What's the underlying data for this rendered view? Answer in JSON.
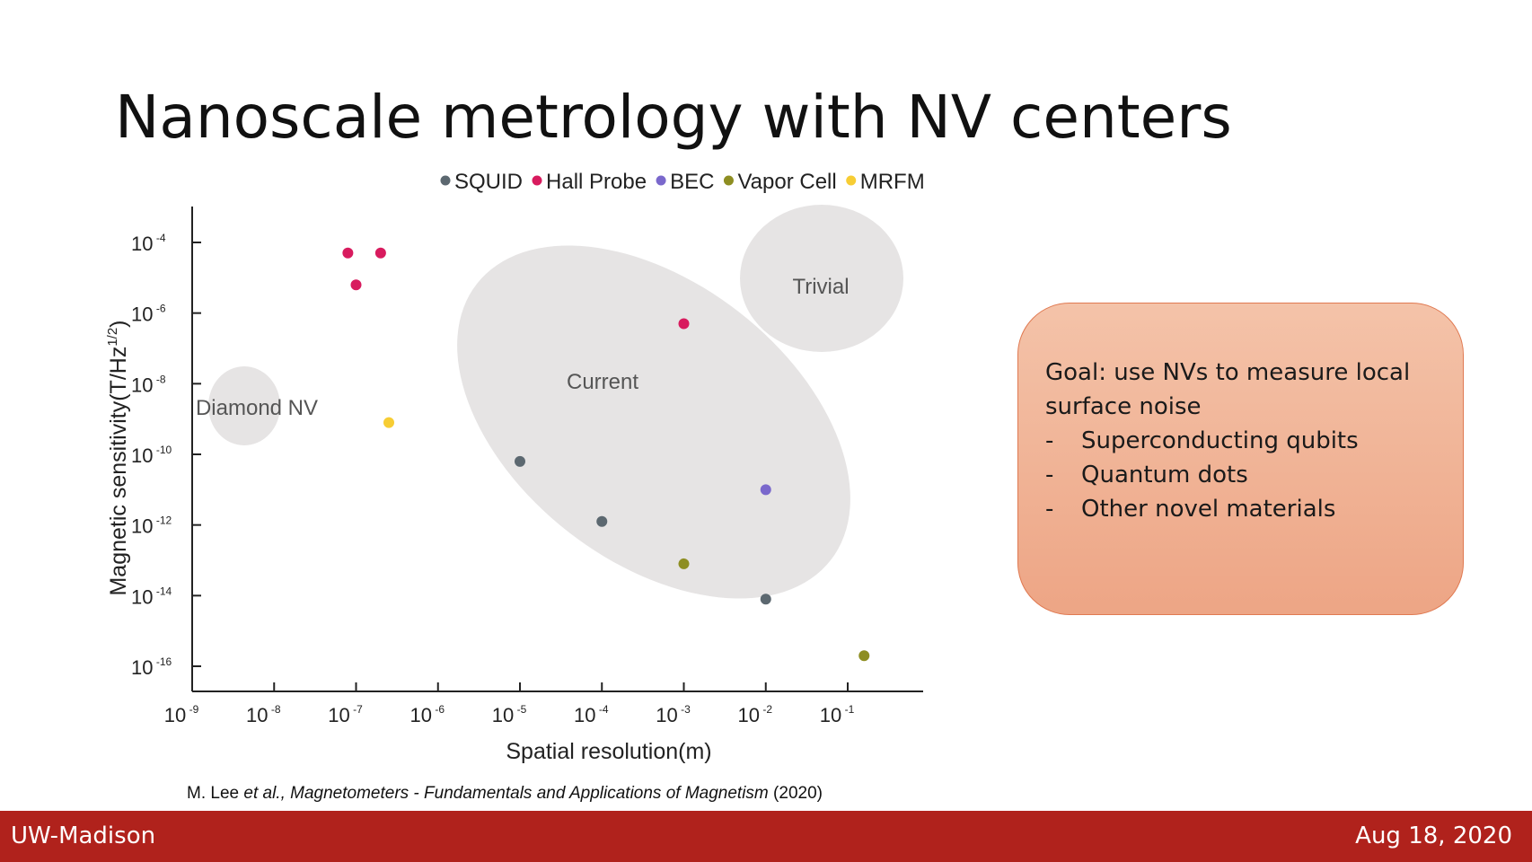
{
  "slide": {
    "title": "Nanoscale metrology with NV centers",
    "citation": {
      "authors": "M. Lee ",
      "etal": "et al.,",
      "work": " Magnetometers - Fundamentals and Applications of Magnetism",
      "year": " (2020)"
    }
  },
  "goal_box": {
    "heading": "Goal: use NVs to measure local surface noise",
    "items": [
      "Superconducting qubits",
      "Quantum dots",
      "Other novel materials"
    ]
  },
  "footer": {
    "left": "UW-Madison",
    "right": "Aug 18, 2020"
  },
  "chart_data": {
    "type": "scatter",
    "xlabel": "Spatial resolution(m)",
    "ylabel": "Magnetic sensitivity(T/Hz",
    "ylabel_sup": "1/2",
    "ylabel_end": ")",
    "x_scale": "log",
    "y_scale": "log",
    "xlim_exp": [
      -9,
      -1
    ],
    "ylim_exp": [
      -16,
      -4
    ],
    "x_ticks": [
      {
        "base": "10",
        "exp": "-9",
        "value": -9
      },
      {
        "base": "10",
        "exp": "-8",
        "value": -8
      },
      {
        "base": "10",
        "exp": "-7",
        "value": -7
      },
      {
        "base": "10",
        "exp": "-6",
        "value": -6
      },
      {
        "base": "10",
        "exp": "-5",
        "value": -5
      },
      {
        "base": "10",
        "exp": "-4",
        "value": -4
      },
      {
        "base": "10",
        "exp": "-3",
        "value": -3
      },
      {
        "base": "10",
        "exp": "-2",
        "value": -2
      },
      {
        "base": "10",
        "exp": "-1",
        "value": -1
      }
    ],
    "y_ticks": [
      {
        "base": "10",
        "exp": "-4",
        "value": -4
      },
      {
        "base": "10",
        "exp": "-6",
        "value": -6
      },
      {
        "base": "10",
        "exp": "-8",
        "value": -8
      },
      {
        "base": "10",
        "exp": "-10",
        "value": -10
      },
      {
        "base": "10",
        "exp": "-12",
        "value": -12
      },
      {
        "base": "10",
        "exp": "-14",
        "value": -14
      },
      {
        "base": "10",
        "exp": "-16",
        "value": -16
      }
    ],
    "legend_position": "top",
    "series": [
      {
        "name": "SQUID",
        "color": "#5c6870",
        "points": [
          {
            "x": -5,
            "y": -10.2
          },
          {
            "x": -4,
            "y": -11.9
          },
          {
            "x": -2,
            "y": -14.1
          }
        ]
      },
      {
        "name": "Hall Probe",
        "color": "#d81b5e",
        "points": [
          {
            "x": -7.1,
            "y": -4.3
          },
          {
            "x": -6.7,
            "y": -4.3
          },
          {
            "x": -7,
            "y": -5.2
          },
          {
            "x": -3,
            "y": -6.3
          }
        ]
      },
      {
        "name": "BEC",
        "color": "#7a68cc",
        "points": [
          {
            "x": -2,
            "y": -11
          }
        ]
      },
      {
        "name": "Vapor Cell",
        "color": "#8e8e22",
        "points": [
          {
            "x": -3,
            "y": -13.1
          },
          {
            "x": -0.8,
            "y": -15.7
          }
        ]
      },
      {
        "name": "MRFM",
        "color": "#f7cd34",
        "points": [
          {
            "x": -6.6,
            "y": -9.1
          }
        ]
      }
    ],
    "regions": [
      {
        "label": "Diamond NV",
        "color": "#e6e4e4"
      },
      {
        "label": "Current",
        "color": "#e6e4e4"
      },
      {
        "label": "Trivial",
        "color": "#e6e4e4"
      }
    ]
  }
}
